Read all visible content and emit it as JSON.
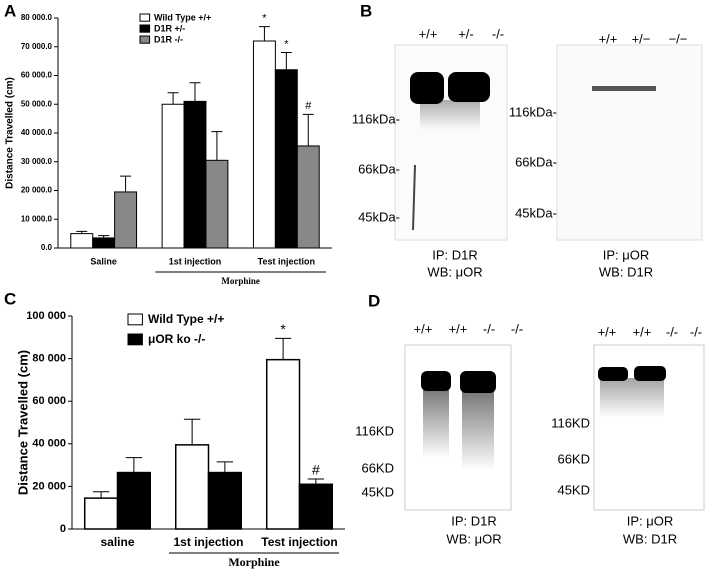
{
  "chart_data": [
    {
      "type": "bar",
      "panel": "A",
      "ylabel": "Distance Travelled (cm)",
      "categories": [
        "Saline",
        "1st injection",
        "Test injection"
      ],
      "group_label": "Morphine",
      "ylim": [
        0,
        80000
      ],
      "yticks": [
        {
          "value": 0,
          "label": "0.0"
        },
        {
          "value": 10000,
          "label": "10 000.0"
        },
        {
          "value": 20000,
          "label": "20 000.0"
        },
        {
          "value": 30000,
          "label": "30 000.0"
        },
        {
          "value": 40000,
          "label": "40 000.0"
        },
        {
          "value": 50000,
          "label": "50 000.0"
        },
        {
          "value": 60000,
          "label": "60 000.0"
        },
        {
          "value": 70000,
          "label": "70 000.0"
        },
        {
          "value": 80000,
          "label": "80 000.0"
        }
      ],
      "series": [
        {
          "name": "Wild Type +/+",
          "color": "#ffffff",
          "values": [
            5000,
            50000,
            72000
          ],
          "errors": [
            800,
            4000,
            5000
          ],
          "markers": [
            null,
            null,
            "*"
          ]
        },
        {
          "name": "D1R +/-",
          "color": "#000000",
          "values": [
            3500,
            51000,
            62000
          ],
          "errors": [
            800,
            6500,
            6000
          ],
          "markers": [
            null,
            null,
            "*"
          ]
        },
        {
          "name": "D1R -/-",
          "color": "#888888",
          "values": [
            19500,
            30500,
            35500
          ],
          "errors": [
            5500,
            10000,
            11000
          ],
          "markers": [
            null,
            null,
            "#"
          ]
        }
      ]
    },
    {
      "type": "bar",
      "panel": "C",
      "ylabel": "Distance Travelled (cm)",
      "categories": [
        "saline",
        "1st injection",
        "Test injection"
      ],
      "group_label": "Morphine",
      "ylim": [
        0,
        100000
      ],
      "yticks": [
        0,
        {
          "value": 20000,
          "label": "20 000"
        },
        {
          "value": 40000,
          "label": "40 000"
        },
        {
          "value": 60000,
          "label": "60 000"
        },
        {
          "value": 80000,
          "label": "80 000"
        },
        {
          "value": 100000,
          "label": "100 000"
        }
      ],
      "series": [
        {
          "name": "Wild Type +/+",
          "color": "#ffffff",
          "values": [
            14500,
            39500,
            79500
          ],
          "errors": [
            3000,
            12000,
            10000
          ],
          "markers": [
            null,
            null,
            "*"
          ]
        },
        {
          "name": "μOR ko -/-",
          "color": "#000000",
          "values": [
            26500,
            26500,
            21000
          ],
          "errors": [
            7000,
            5000,
            2500
          ],
          "markers": [
            null,
            null,
            "#"
          ]
        }
      ]
    }
  ],
  "blots": [
    {
      "panel": "B",
      "lanes": [
        "+/+",
        "+/-",
        "-/-"
      ],
      "markers": [
        "116kDa-",
        "66kDa-",
        "45kDa-"
      ],
      "caption": [
        "IP: D1R",
        "WB: μOR"
      ]
    },
    {
      "lanes": [
        "+/+",
        "+/−",
        "−/−"
      ],
      "markers": [
        "116kDa-",
        "66kDa-",
        "45kDa-"
      ],
      "caption": [
        "IP: μOR",
        "WB: D1R"
      ]
    },
    {
      "panel": "D",
      "lanes": [
        "+/+",
        "+/+",
        "-/-",
        "-/-"
      ],
      "markers": [
        "116KD",
        "66KD",
        "45KD"
      ],
      "caption": [
        "IP: D1R",
        "WB: μOR"
      ]
    },
    {
      "lanes": [
        "+/+",
        "+/+",
        "-/-",
        "-/-"
      ],
      "markers": [
        "116KD",
        "66KD",
        "45KD"
      ],
      "caption": [
        "IP: μOR",
        "WB: D1R"
      ]
    }
  ]
}
